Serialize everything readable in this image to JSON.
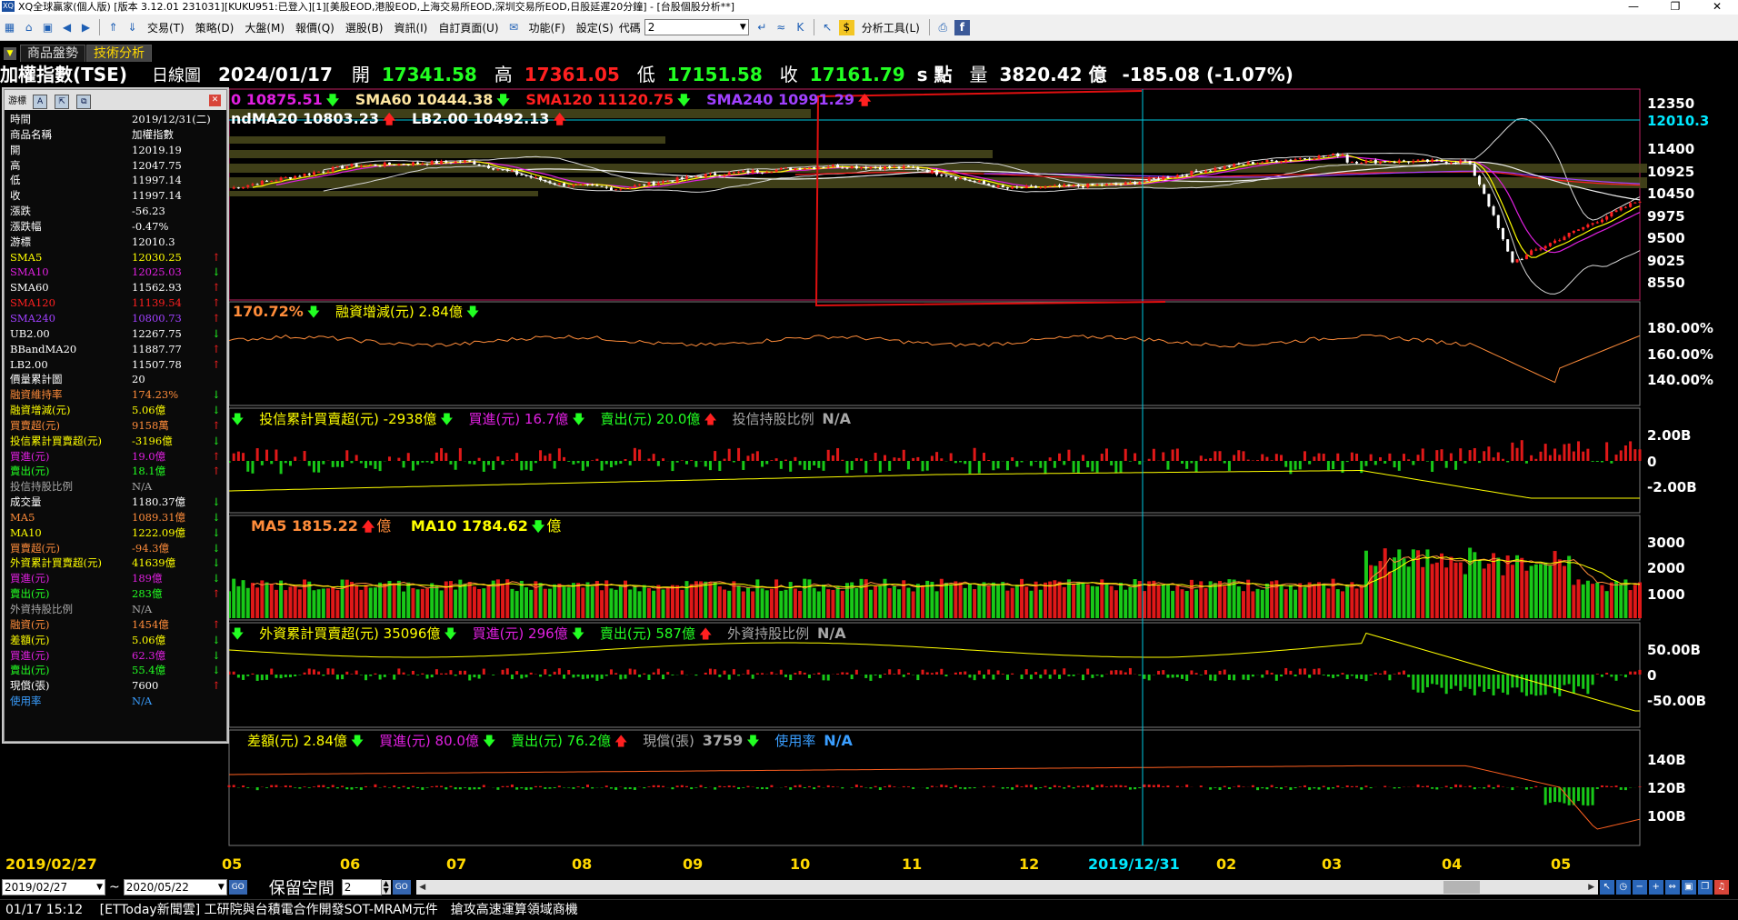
{
  "window": {
    "title": "XQ全球贏家(個人版) [版本 3.12.01 231031][KUKU951:已登入][1][美股EOD,港股EOD,上海交易所EOD,深圳交易所EOD,日股延遲20分鐘] - [台股個股分析**]",
    "app_icon": "XQ"
  },
  "menu": {
    "items": [
      "交易(T)",
      "策略(D)",
      "大盤(M)",
      "報價(Q)",
      "選股(B)",
      "資訊(I)",
      "自訂頁面(U)",
      "功能(F)",
      "設定(S)"
    ],
    "code_label": "代碼",
    "code_value": "2",
    "analysis_tools": "分析工具(L)"
  },
  "tabs": [
    {
      "label": "商品盤勢",
      "active": false
    },
    {
      "label": "技術分析",
      "active": true
    }
  ],
  "header": {
    "name": "加權指數(TSE)",
    "period": "日線圖",
    "date": "2024/01/17",
    "open_label": "開",
    "open": "17341.58",
    "high_label": "高",
    "high": "17361.05",
    "low_label": "低",
    "low": "17151.58",
    "close_label": "收",
    "close": "17161.79",
    "unit": "s 點",
    "volume_label": "量",
    "volume": "3820.42 億",
    "change": "-185.08 (-1.07%)"
  },
  "legends": {
    "price1": [
      "0 10875.51",
      "SMA60 10444.38",
      "SMA120 11120.75",
      "SMA240 10991.29"
    ],
    "price2": [
      "ndMA20 10803.23",
      "LB2.00 10492.13"
    ],
    "margin": [
      "170.72%",
      "融資增減(元) 2.84億"
    ],
    "trust": [
      "投信累計買賣超(元) -2938億",
      "買進(元) 16.7億",
      "賣出(元) 20.0億",
      "投信持股比例",
      "N/A"
    ],
    "volume": [
      "MA5 1815.22",
      "億",
      "MA10 1784.62",
      "億"
    ],
    "foreign": [
      "外資累計買賣超(元) 35096億",
      "買進(元) 296億",
      "賣出(元) 587億",
      "外資持股比例",
      "N/A"
    ],
    "margin2": [
      "差額(元) 2.84億",
      "買進(元) 80.0億",
      "賣出(元) 76.2億",
      "現償(張)",
      "3759",
      "使用率",
      "N/A"
    ]
  },
  "axes": {
    "price": [
      "12350",
      "12010.3",
      "11400",
      "10925",
      "10450",
      "9975",
      "9500",
      "9025",
      "8550"
    ],
    "margin_rate": [
      "180.00%",
      "160.00%",
      "140.00%"
    ],
    "trust": [
      "2.00B",
      "0",
      "-2.00B"
    ],
    "volume": [
      "3000",
      "2000",
      "1000"
    ],
    "foreign": [
      "50.00B",
      "0",
      "-50.00B"
    ],
    "margin_amt": [
      "140B",
      "120B",
      "100B"
    ]
  },
  "dates": [
    "2019/02/27",
    "05",
    "06",
    "07",
    "08",
    "09",
    "10",
    "11",
    "12",
    "2019/12/31",
    "02",
    "03",
    "04",
    "05"
  ],
  "info_panel": {
    "title": "游標",
    "rows": [
      {
        "label": "時間",
        "value": "2019/12/31(二)",
        "color": "#ffffff",
        "arrow": ""
      },
      {
        "label": "商品名稱",
        "value": "加權指數",
        "color": "#ffffff",
        "arrow": ""
      },
      {
        "label": "開",
        "value": "12019.19",
        "color": "#ffffff",
        "arrow": ""
      },
      {
        "label": "高",
        "value": "12047.75",
        "color": "#ffffff",
        "arrow": ""
      },
      {
        "label": "低",
        "value": "11997.14",
        "color": "#ffffff",
        "arrow": ""
      },
      {
        "label": "收",
        "value": "11997.14",
        "color": "#ffffff",
        "arrow": ""
      },
      {
        "label": "漲跌",
        "value": "-56.23",
        "color": "#ffffff",
        "arrow": ""
      },
      {
        "label": "漲跌幅",
        "value": "-0.47%",
        "color": "#ffffff",
        "arrow": ""
      },
      {
        "label": "游標",
        "value": "12010.3",
        "color": "#ffffff",
        "arrow": ""
      },
      {
        "label": "SMA5",
        "value": "12030.25",
        "color": "#ffff00",
        "arrow": "up"
      },
      {
        "label": "SMA10",
        "value": "12025.03",
        "color": "#e020e0",
        "arrow": "dn"
      },
      {
        "label": "SMA60",
        "value": "11562.93",
        "color": "#ffffff",
        "arrow": "up"
      },
      {
        "label": "SMA120",
        "value": "11139.54",
        "color": "#ff2020",
        "arrow": "up"
      },
      {
        "label": "SMA240",
        "value": "10800.73",
        "color": "#a040ff",
        "arrow": "up"
      },
      {
        "label": "UB2.00",
        "value": "12267.75",
        "color": "#ffffff",
        "arrow": "dn"
      },
      {
        "label": "BBandMA20",
        "value": "11887.77",
        "color": "#ffffff",
        "arrow": "up"
      },
      {
        "label": "LB2.00",
        "value": "11507.78",
        "color": "#ffffff",
        "arrow": "up"
      },
      {
        "label": "價量累計圖",
        "value": "20",
        "color": "#ffffff",
        "arrow": ""
      },
      {
        "label": "融資維持率",
        "value": "174.23%",
        "color": "#ff8c3a",
        "arrow": "dn"
      },
      {
        "label": "融資增減(元)",
        "value": "5.06億",
        "color": "#ffff00",
        "arrow": "dn"
      },
      {
        "label": "買賣超(元)",
        "value": "9158萬",
        "color": "#ff8c3a",
        "arrow": "up"
      },
      {
        "label": "投信累計買賣超(元)",
        "value": "-3196億",
        "color": "#ffff00",
        "arrow": "dn"
      },
      {
        "label": "買進(元)",
        "value": "19.0億",
        "color": "#e020e0",
        "arrow": "up"
      },
      {
        "label": "賣出(元)",
        "value": "18.1億",
        "color": "#22ff22",
        "arrow": "up"
      },
      {
        "label": "投信持股比例",
        "value": "N/A",
        "color": "#a8a8a8",
        "arrow": ""
      },
      {
        "label": "成交量",
        "value": "1180.37億",
        "color": "#ffffff",
        "arrow": "dn"
      },
      {
        "label": "MA5",
        "value": "1089.31億",
        "color": "#ff8c3a",
        "arrow": "dn"
      },
      {
        "label": "MA10",
        "value": "1222.09億",
        "color": "#ffff00",
        "arrow": "dn"
      },
      {
        "label": "買賣超(元)",
        "value": "-94.3億",
        "color": "#ff8c3a",
        "arrow": "dn"
      },
      {
        "label": "外資累計買賣超(元)",
        "value": "41639億",
        "color": "#ffff00",
        "arrow": "dn"
      },
      {
        "label": "買進(元)",
        "value": "189億",
        "color": "#e020e0",
        "arrow": "dn"
      },
      {
        "label": "賣出(元)",
        "value": "283億",
        "color": "#22ff22",
        "arrow": "up"
      },
      {
        "label": "外資持股比例",
        "value": "N/A",
        "color": "#a8a8a8",
        "arrow": ""
      },
      {
        "label": "融資(元)",
        "value": "1454億",
        "color": "#ff8c3a",
        "arrow": "up"
      },
      {
        "label": "差額(元)",
        "value": "5.06億",
        "color": "#ffff00",
        "arrow": "dn"
      },
      {
        "label": "買進(元)",
        "value": "62.3億",
        "color": "#e020e0",
        "arrow": "dn"
      },
      {
        "label": "賣出(元)",
        "value": "55.4億",
        "color": "#22ff22",
        "arrow": "dn"
      },
      {
        "label": "現償(張)",
        "value": "7600",
        "color": "#ffffff",
        "arrow": "up"
      },
      {
        "label": "使用率",
        "value": "N/A",
        "color": "#3a9eff",
        "arrow": ""
      }
    ]
  },
  "bottom": {
    "start_date": "2019/02/27",
    "tilde": "~",
    "end_date": "2020/05/22",
    "go_label": "GO",
    "reserve_label": "保留空間",
    "reserve_value": "2"
  },
  "status": {
    "time": "01/17 15:12",
    "news": "[ETToday新聞雲] 工研院與台積電合作開發SOT-MRAM元件　搶攻高速運算領域商機"
  },
  "colors": {
    "up": "#ff2020",
    "down": "#22ff22",
    "cursor_line": "#00c8e0",
    "sma5": "#ffff00",
    "sma10": "#e020e0",
    "sma120": "#ff2020",
    "sma240": "#a040ff"
  }
}
